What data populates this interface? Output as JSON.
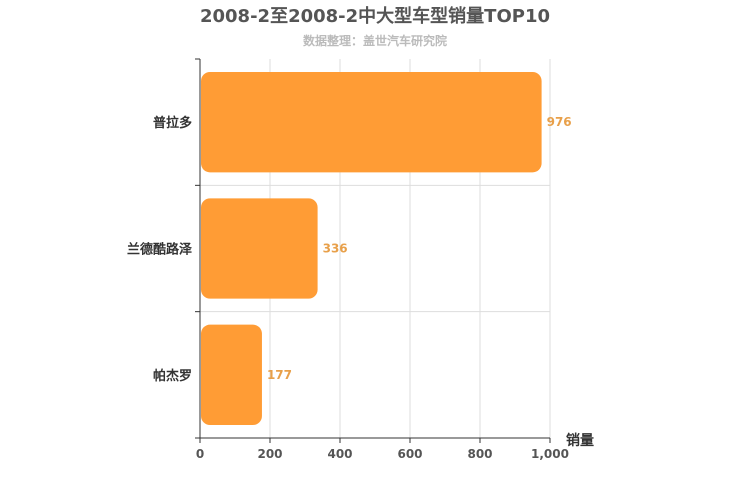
{
  "chart_data": {
    "type": "bar",
    "orientation": "horizontal",
    "title": "2008-2至2008-2中大型车型销量TOP10",
    "subtitle": "数据整理：盖世汽车研究院",
    "categories": [
      "普拉多",
      "兰德酷路泽",
      "帕杰罗"
    ],
    "values": [
      976,
      336,
      177
    ],
    "xlabel": "销量",
    "ylabel": "",
    "xlim": [
      0,
      1000
    ],
    "x_ticks": [
      0,
      200,
      400,
      600,
      800,
      1000
    ],
    "x_tick_labels": [
      "0",
      "200",
      "400",
      "600",
      "800",
      "1,000"
    ],
    "grid": true,
    "bar_color": "#ff9c35",
    "label_color": "#e8a04a"
  }
}
